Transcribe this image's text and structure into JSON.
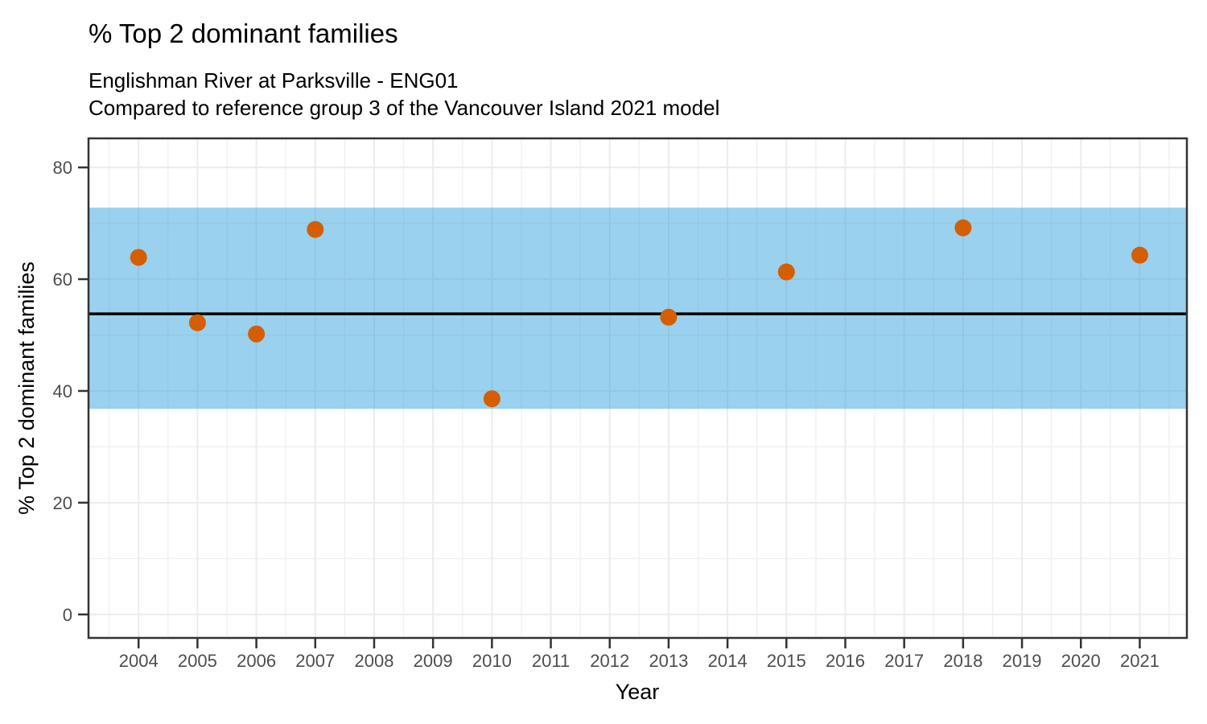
{
  "chart_data": {
    "type": "scatter",
    "title": "% Top 2 dominant families",
    "subtitle": [
      "Englishman River at Parksville - ENG01",
      "Compared to reference group 3 of the Vancouver Island 2021 model"
    ],
    "xlabel": "Year",
    "ylabel": "% Top 2 dominant families",
    "x_ticks": [
      2004,
      2005,
      2006,
      2007,
      2008,
      2009,
      2010,
      2011,
      2012,
      2013,
      2014,
      2015,
      2016,
      2017,
      2018,
      2019,
      2020,
      2021
    ],
    "y_ticks": [
      0,
      20,
      40,
      60,
      80
    ],
    "x_domain": [
      2003.15,
      2021.8
    ],
    "y_domain": [
      -4.2,
      85.2
    ],
    "grid": {
      "major": true,
      "minor": true
    },
    "legend_position": "none",
    "points": [
      {
        "x": 2004,
        "y": 63.9
      },
      {
        "x": 2005,
        "y": 52.2
      },
      {
        "x": 2006,
        "y": 50.2
      },
      {
        "x": 2007,
        "y": 68.9
      },
      {
        "x": 2010,
        "y": 38.6
      },
      {
        "x": 2013,
        "y": 53.2
      },
      {
        "x": 2015,
        "y": 61.3
      },
      {
        "x": 2018,
        "y": 69.2
      },
      {
        "x": 2021,
        "y": 64.3
      }
    ],
    "reference_band": {
      "ymin": 36.8,
      "ymax": 72.8
    },
    "reference_line": {
      "y": 53.8
    },
    "colors": {
      "point": "#D55E00",
      "band_fill": "#35A3DD",
      "band_opacity": 0.5,
      "reference_line": "#000000",
      "grid_major": "#EBEBEB",
      "grid_minor": "#F0F0F0",
      "panel_border": "#333333",
      "tick": "#333333",
      "tick_label": "#4d4d4d",
      "background": "#ffffff"
    }
  }
}
